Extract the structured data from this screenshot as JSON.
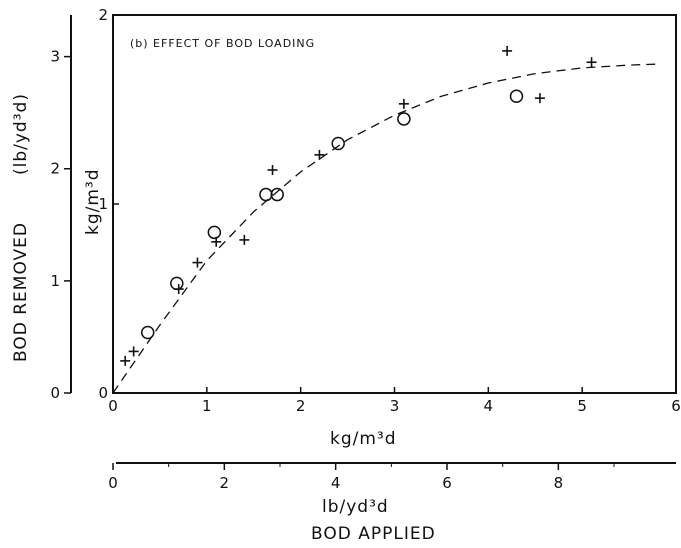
{
  "chart_data": {
    "type": "scatter",
    "annotation": "(b) EFFECT OF BOD LOADING",
    "xlabel": "kg/m³d",
    "ylabel": "kg/m³d",
    "xlim": [
      0,
      6
    ],
    "ylim": [
      0,
      2
    ],
    "x_ticks": [
      "0",
      "1",
      "2",
      "3",
      "4",
      "5",
      "6"
    ],
    "y_ticks": [
      "0",
      "1",
      "2"
    ],
    "secondary_x_axis": {
      "label": "lb/yd³d",
      "title": "BOD APPLIED",
      "ticks": [
        "0",
        "2",
        "4",
        "6",
        "8"
      ]
    },
    "secondary_y_axis": {
      "label": "(lb/yd³d)",
      "title": "BOD REMOVED",
      "ticks": [
        "0",
        "1",
        "2",
        "3"
      ]
    },
    "series": [
      {
        "marker": "plus",
        "x": [
          0.13,
          0.22,
          0.7,
          0.9,
          1.1,
          1.4,
          1.7,
          2.2,
          3.1,
          4.2,
          4.55,
          5.1
        ],
        "y": [
          0.17,
          0.22,
          0.55,
          0.69,
          0.8,
          0.81,
          1.18,
          1.26,
          1.53,
          1.81,
          1.56,
          1.75
        ]
      },
      {
        "marker": "circle",
        "x": [
          0.37,
          0.68,
          1.08,
          1.63,
          1.75,
          2.4,
          3.1,
          4.3
        ],
        "y": [
          0.32,
          0.58,
          0.85,
          1.05,
          1.05,
          1.32,
          1.45,
          1.57
        ]
      },
      {
        "style": "dashed-curve",
        "x": [
          0,
          0.5,
          1,
          1.5,
          2,
          2.5,
          3,
          3.5,
          4,
          4.5,
          5,
          5.5,
          5.8
        ],
        "y": [
          0,
          0.36,
          0.7,
          0.96,
          1.17,
          1.34,
          1.47,
          1.57,
          1.64,
          1.69,
          1.72,
          1.735,
          1.74
        ]
      }
    ]
  },
  "colors": {
    "ink": "#111111",
    "background": "#ffffff"
  }
}
